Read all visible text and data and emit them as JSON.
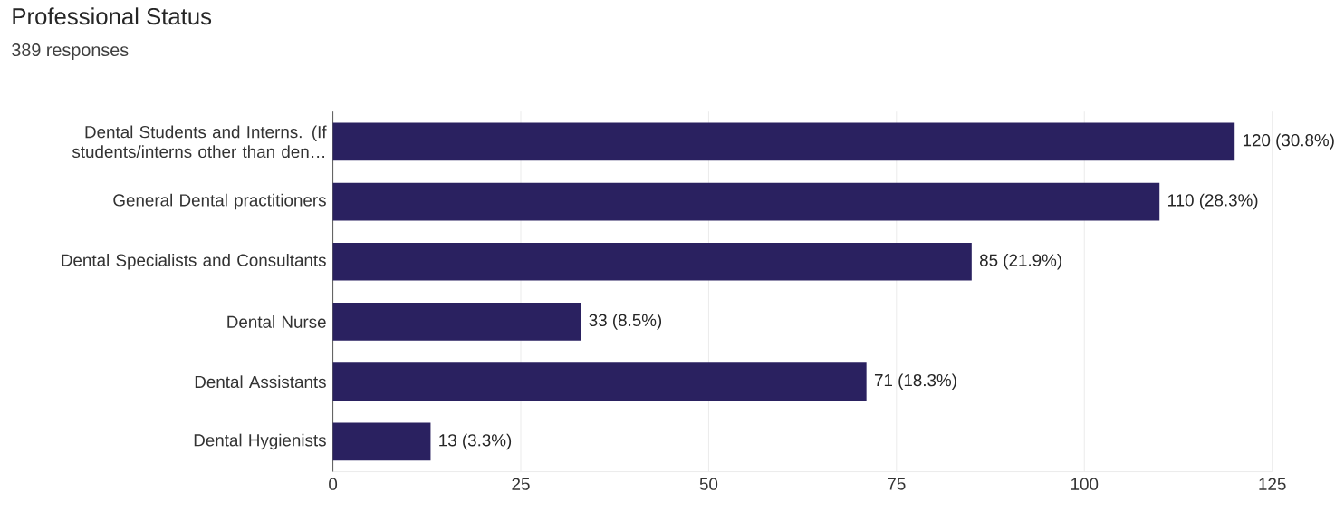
{
  "chart_data": {
    "type": "bar",
    "orientation": "horizontal",
    "title": "Professional Status",
    "subtitle": "389 responses",
    "categories": [
      "Dental Students and Interns. (If students/interns other than den…",
      "General Dental practitioners",
      "Dental Specialists and Consultants",
      "Dental Nurse",
      "Dental Assistants",
      "Dental Hygienists"
    ],
    "values": [
      120,
      110,
      85,
      33,
      71,
      13
    ],
    "value_labels": [
      "120 (30.8%)",
      "110 (28.3%)",
      "85 (21.9%)",
      "33 (8.5%)",
      "71 (18.3%)",
      "13 (3.3%)"
    ],
    "color": "#2a2160",
    "xlim": [
      0,
      125
    ],
    "xticks": [
      0,
      25,
      50,
      75,
      100,
      125
    ],
    "grid": "x"
  }
}
